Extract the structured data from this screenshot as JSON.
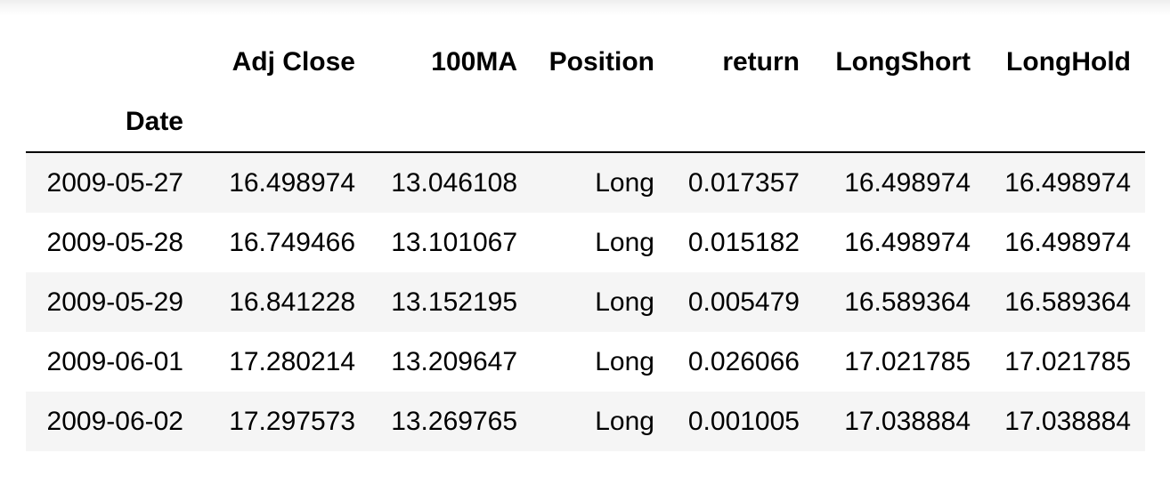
{
  "table": {
    "columns": [
      "Adj Close",
      "100MA",
      "Position",
      "return",
      "LongShort",
      "LongHold"
    ],
    "index_name": "Date",
    "rows": [
      {
        "date": "2009-05-27",
        "values": [
          "16.498974",
          "13.046108",
          "Long",
          "0.017357",
          "16.498974",
          "16.498974"
        ]
      },
      {
        "date": "2009-05-28",
        "values": [
          "16.749466",
          "13.101067",
          "Long",
          "0.015182",
          "16.498974",
          "16.498974"
        ]
      },
      {
        "date": "2009-05-29",
        "values": [
          "16.841228",
          "13.152195",
          "Long",
          "0.005479",
          "16.589364",
          "16.589364"
        ]
      },
      {
        "date": "2009-06-01",
        "values": [
          "17.280214",
          "13.209647",
          "Long",
          "0.026066",
          "17.021785",
          "17.021785"
        ]
      },
      {
        "date": "2009-06-02",
        "values": [
          "17.297573",
          "13.269765",
          "Long",
          "0.001005",
          "17.038884",
          "17.038884"
        ]
      }
    ]
  }
}
